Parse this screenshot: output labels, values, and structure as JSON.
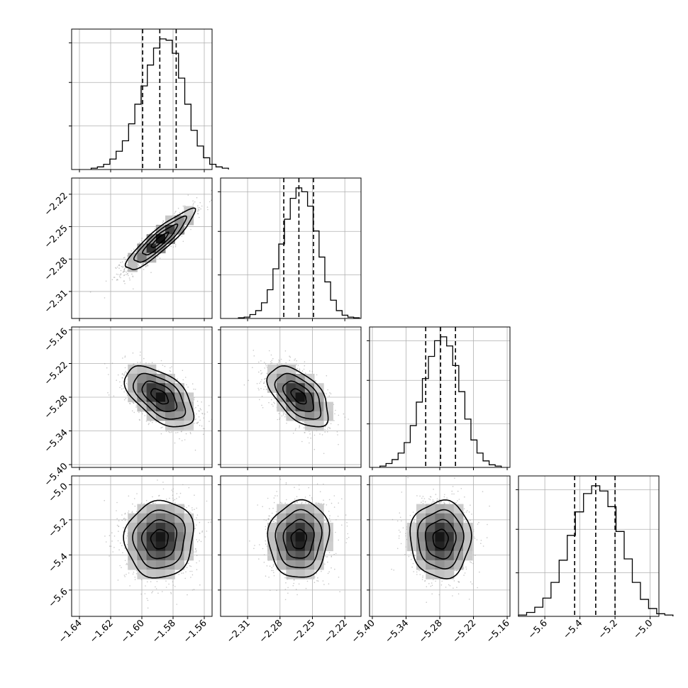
{
  "chart_data": {
    "type": "corner",
    "parameters": [
      {
        "range": [
          -1.645,
          -1.555
        ],
        "median": -1.5885,
        "q16": -1.5995,
        "q84": -1.578,
        "ticks": [
          -1.64,
          -1.62,
          -1.6,
          -1.58,
          -1.56
        ],
        "tick_labels": [
          "−1.64",
          "−1.62",
          "−1.60",
          "−1.58",
          "−1.56"
        ],
        "sd": 0.011
      },
      {
        "range": [
          -2.335,
          -2.205
        ],
        "median": -2.2625,
        "q16": -2.2765,
        "q84": -2.249,
        "ticks": [
          -2.31,
          -2.28,
          -2.25,
          -2.22
        ],
        "tick_labels": [
          "−2.31",
          "−2.28",
          "−2.25",
          "−2.22"
        ],
        "sd": 0.014
      },
      {
        "range": [
          -5.405,
          -5.155
        ],
        "median": -5.2785,
        "q16": -5.305,
        "q84": -5.252,
        "ticks": [
          -5.4,
          -5.34,
          -5.28,
          -5.22,
          -5.16
        ],
        "tick_labels": [
          "−5.40",
          "−5.34",
          "−5.28",
          "−5.22",
          "−5.16"
        ],
        "sd": 0.027
      },
      {
        "range": [
          -5.75,
          -4.95
        ],
        "median": -5.31,
        "q16": -5.43,
        "q84": -5.2,
        "ticks": [
          -5.6,
          -5.4,
          -5.2,
          -5.0
        ],
        "tick_labels": [
          "−5.6",
          "−5.4",
          "−5.2",
          "−5.0"
        ],
        "sd": 0.11
      }
    ],
    "histograms": [
      [
        1,
        2,
        4,
        8,
        14,
        22,
        35,
        50,
        64,
        80,
        93,
        100,
        99,
        89,
        70,
        50,
        30,
        18,
        9,
        4,
        2,
        1
      ],
      [
        0.5,
        1,
        3,
        6,
        12,
        22,
        38,
        57,
        76,
        92,
        100,
        97,
        86,
        67,
        47,
        28,
        14,
        6,
        2.5,
        1,
        0.5
      ],
      [
        1,
        3,
        6,
        11,
        19,
        32,
        50,
        68,
        85,
        97,
        100,
        93,
        78,
        58,
        37,
        21,
        11,
        5,
        2,
        1
      ],
      [
        1,
        3,
        7,
        14,
        26,
        43,
        62,
        80,
        94,
        100,
        96,
        84,
        65,
        44,
        26,
        13,
        6,
        2,
        1
      ]
    ],
    "correlations": [
      [
        1,
        0.9,
        -0.55,
        0.05
      ],
      [
        0.9,
        1,
        -0.55,
        0.05
      ],
      [
        -0.55,
        -0.55,
        1,
        0.0
      ],
      [
        0.05,
        0.05,
        0.0,
        1
      ]
    ],
    "quantiles": [
      0.16,
      0.5,
      0.84
    ],
    "contour_levels_sigma": [
      0.5,
      1.0,
      1.5,
      2.0
    ],
    "grid": true
  }
}
